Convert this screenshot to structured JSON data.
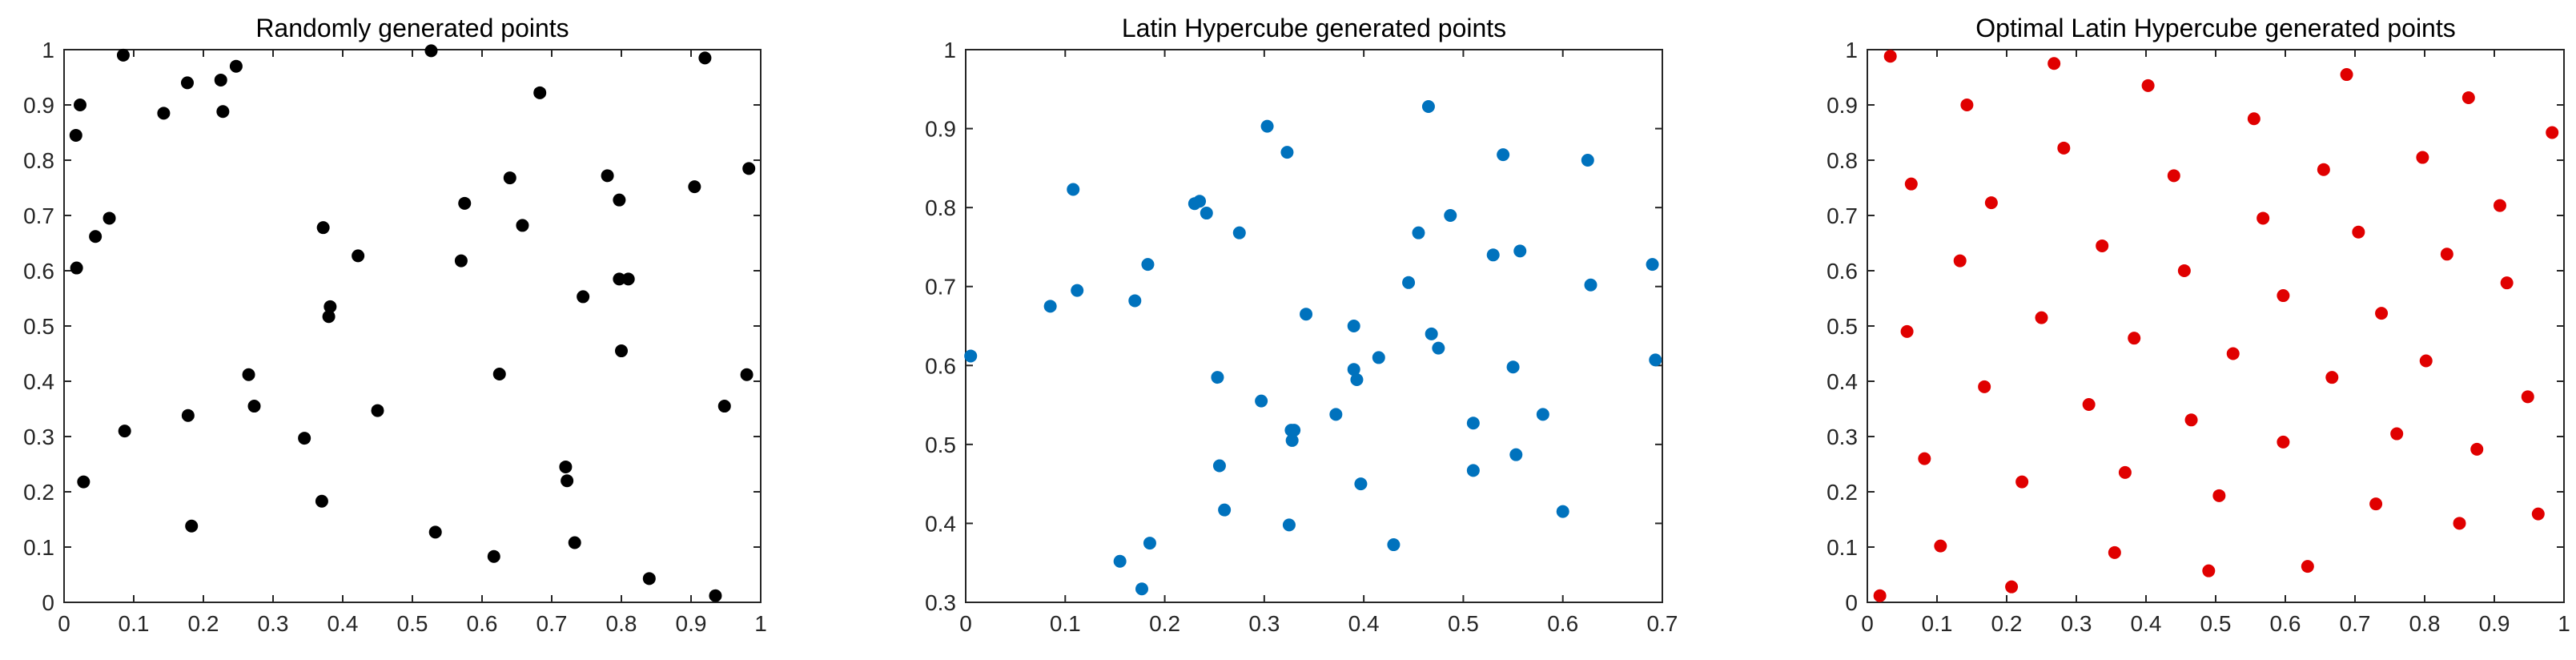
{
  "chart_data": [
    {
      "type": "scatter",
      "title": "Randomly generated points",
      "xlabel": "",
      "ylabel": "",
      "xlim": [
        0,
        1
      ],
      "ylim": [
        0,
        1
      ],
      "xticks": [
        "0",
        "0.1",
        "0.2",
        "0.3",
        "0.4",
        "0.5",
        "0.6",
        "0.7",
        "0.8",
        "0.9",
        "1"
      ],
      "yticks": [
        "0",
        "0.1",
        "0.2",
        "0.3",
        "0.4",
        "0.5",
        "0.6",
        "0.7",
        "0.8",
        "0.9",
        "1"
      ],
      "grid": false,
      "color": "#000000",
      "points": [
        [
          0.017,
          0.845
        ],
        [
          0.023,
          0.9
        ],
        [
          0.085,
          0.99
        ],
        [
          0.018,
          0.605
        ],
        [
          0.045,
          0.662
        ],
        [
          0.065,
          0.695
        ],
        [
          0.028,
          0.218
        ],
        [
          0.087,
          0.31
        ],
        [
          0.177,
          0.94
        ],
        [
          0.143,
          0.885
        ],
        [
          0.225,
          0.945
        ],
        [
          0.228,
          0.888
        ],
        [
          0.247,
          0.97
        ],
        [
          0.178,
          0.338
        ],
        [
          0.183,
          0.138
        ],
        [
          0.265,
          0.412
        ],
        [
          0.273,
          0.355
        ],
        [
          0.527,
          0.998
        ],
        [
          0.683,
          0.922
        ],
        [
          0.92,
          0.985
        ],
        [
          0.983,
          0.785
        ],
        [
          0.905,
          0.752
        ],
        [
          0.78,
          0.772
        ],
        [
          0.797,
          0.728
        ],
        [
          0.64,
          0.768
        ],
        [
          0.575,
          0.722
        ],
        [
          0.658,
          0.682
        ],
        [
          0.372,
          0.678
        ],
        [
          0.422,
          0.627
        ],
        [
          0.57,
          0.618
        ],
        [
          0.382,
          0.535
        ],
        [
          0.38,
          0.517
        ],
        [
          0.745,
          0.553
        ],
        [
          0.797,
          0.585
        ],
        [
          0.81,
          0.585
        ],
        [
          0.8,
          0.455
        ],
        [
          0.625,
          0.413
        ],
        [
          0.98,
          0.412
        ],
        [
          0.948,
          0.355
        ],
        [
          0.45,
          0.347
        ],
        [
          0.345,
          0.297
        ],
        [
          0.72,
          0.245
        ],
        [
          0.722,
          0.22
        ],
        [
          0.37,
          0.183
        ],
        [
          0.533,
          0.127
        ],
        [
          0.617,
          0.083
        ],
        [
          0.733,
          0.108
        ],
        [
          0.84,
          0.043
        ],
        [
          0.935,
          0.012
        ]
      ]
    },
    {
      "type": "scatter",
      "title": "Latin Hypercube generated points",
      "xlabel": "",
      "ylabel": "",
      "xlim": [
        0,
        0.7
      ],
      "ylim": [
        0.3,
        1
      ],
      "xticks": [
        "0",
        "0.1",
        "0.2",
        "0.3",
        "0.4",
        "0.5",
        "0.6",
        "0.7"
      ],
      "yticks": [
        "0.3",
        "0.4",
        "0.5",
        "0.6",
        "0.7",
        "0.8",
        "0.9",
        "1"
      ],
      "grid": false,
      "color": "#0072BD",
      "points": [
        [
          0.005,
          0.612
        ],
        [
          0.085,
          0.675
        ],
        [
          0.108,
          0.823
        ],
        [
          0.112,
          0.695
        ],
        [
          0.17,
          0.682
        ],
        [
          0.183,
          0.728
        ],
        [
          0.155,
          0.352
        ],
        [
          0.177,
          0.317
        ],
        [
          0.185,
          0.375
        ],
        [
          0.23,
          0.805
        ],
        [
          0.235,
          0.808
        ],
        [
          0.242,
          0.793
        ],
        [
          0.275,
          0.768
        ],
        [
          0.303,
          0.903
        ],
        [
          0.323,
          0.87
        ],
        [
          0.253,
          0.585
        ],
        [
          0.255,
          0.473
        ],
        [
          0.26,
          0.417
        ],
        [
          0.297,
          0.555
        ],
        [
          0.327,
          0.518
        ],
        [
          0.33,
          0.518
        ],
        [
          0.328,
          0.505
        ],
        [
          0.325,
          0.398
        ],
        [
          0.342,
          0.665
        ],
        [
          0.372,
          0.538
        ],
        [
          0.39,
          0.65
        ],
        [
          0.39,
          0.595
        ],
        [
          0.393,
          0.582
        ],
        [
          0.397,
          0.45
        ],
        [
          0.415,
          0.61
        ],
        [
          0.43,
          0.373
        ],
        [
          0.445,
          0.705
        ],
        [
          0.455,
          0.768
        ],
        [
          0.465,
          0.928
        ],
        [
          0.468,
          0.64
        ],
        [
          0.475,
          0.622
        ],
        [
          0.487,
          0.79
        ],
        [
          0.51,
          0.527
        ],
        [
          0.51,
          0.467
        ],
        [
          0.53,
          0.74
        ],
        [
          0.54,
          0.867
        ],
        [
          0.55,
          0.598
        ],
        [
          0.553,
          0.487
        ],
        [
          0.557,
          0.745
        ],
        [
          0.58,
          0.538
        ],
        [
          0.6,
          0.415
        ],
        [
          0.625,
          0.86
        ],
        [
          0.628,
          0.702
        ],
        [
          0.69,
          0.728
        ],
        [
          0.693,
          0.607
        ]
      ]
    },
    {
      "type": "scatter",
      "title": "Optimal Latin Hypercube generated points",
      "xlabel": "",
      "ylabel": "",
      "xlim": [
        0,
        1
      ],
      "ylim": [
        0,
        1
      ],
      "xticks": [
        "0",
        "0.1",
        "0.2",
        "0.3",
        "0.4",
        "0.5",
        "0.6",
        "0.7",
        "0.8",
        "0.9",
        "1"
      ],
      "yticks": [
        "0",
        "0.1",
        "0.2",
        "0.3",
        "0.4",
        "0.5",
        "0.6",
        "0.7",
        "0.8",
        "0.9",
        "1"
      ],
      "grid": false,
      "color": "#E00000",
      "points": [
        [
          0.033,
          0.988
        ],
        [
          0.268,
          0.975
        ],
        [
          0.688,
          0.955
        ],
        [
          0.403,
          0.935
        ],
        [
          0.143,
          0.9
        ],
        [
          0.863,
          0.913
        ],
        [
          0.555,
          0.875
        ],
        [
          0.983,
          0.85
        ],
        [
          0.282,
          0.822
        ],
        [
          0.797,
          0.805
        ],
        [
          0.655,
          0.783
        ],
        [
          0.44,
          0.772
        ],
        [
          0.063,
          0.757
        ],
        [
          0.178,
          0.723
        ],
        [
          0.908,
          0.718
        ],
        [
          0.568,
          0.695
        ],
        [
          0.705,
          0.67
        ],
        [
          0.337,
          0.645
        ],
        [
          0.832,
          0.63
        ],
        [
          0.133,
          0.618
        ],
        [
          0.455,
          0.6
        ],
        [
          0.918,
          0.578
        ],
        [
          0.597,
          0.555
        ],
        [
          0.738,
          0.523
        ],
        [
          0.25,
          0.515
        ],
        [
          0.057,
          0.49
        ],
        [
          0.383,
          0.478
        ],
        [
          0.525,
          0.45
        ],
        [
          0.802,
          0.437
        ],
        [
          0.667,
          0.407
        ],
        [
          0.168,
          0.39
        ],
        [
          0.948,
          0.372
        ],
        [
          0.318,
          0.358
        ],
        [
          0.465,
          0.33
        ],
        [
          0.76,
          0.305
        ],
        [
          0.597,
          0.29
        ],
        [
          0.082,
          0.26
        ],
        [
          0.875,
          0.277
        ],
        [
          0.37,
          0.235
        ],
        [
          0.222,
          0.218
        ],
        [
          0.505,
          0.193
        ],
        [
          0.73,
          0.178
        ],
        [
          0.963,
          0.16
        ],
        [
          0.85,
          0.143
        ],
        [
          0.105,
          0.102
        ],
        [
          0.355,
          0.09
        ],
        [
          0.632,
          0.065
        ],
        [
          0.49,
          0.057
        ],
        [
          0.207,
          0.028
        ],
        [
          0.018,
          0.012
        ]
      ]
    }
  ]
}
